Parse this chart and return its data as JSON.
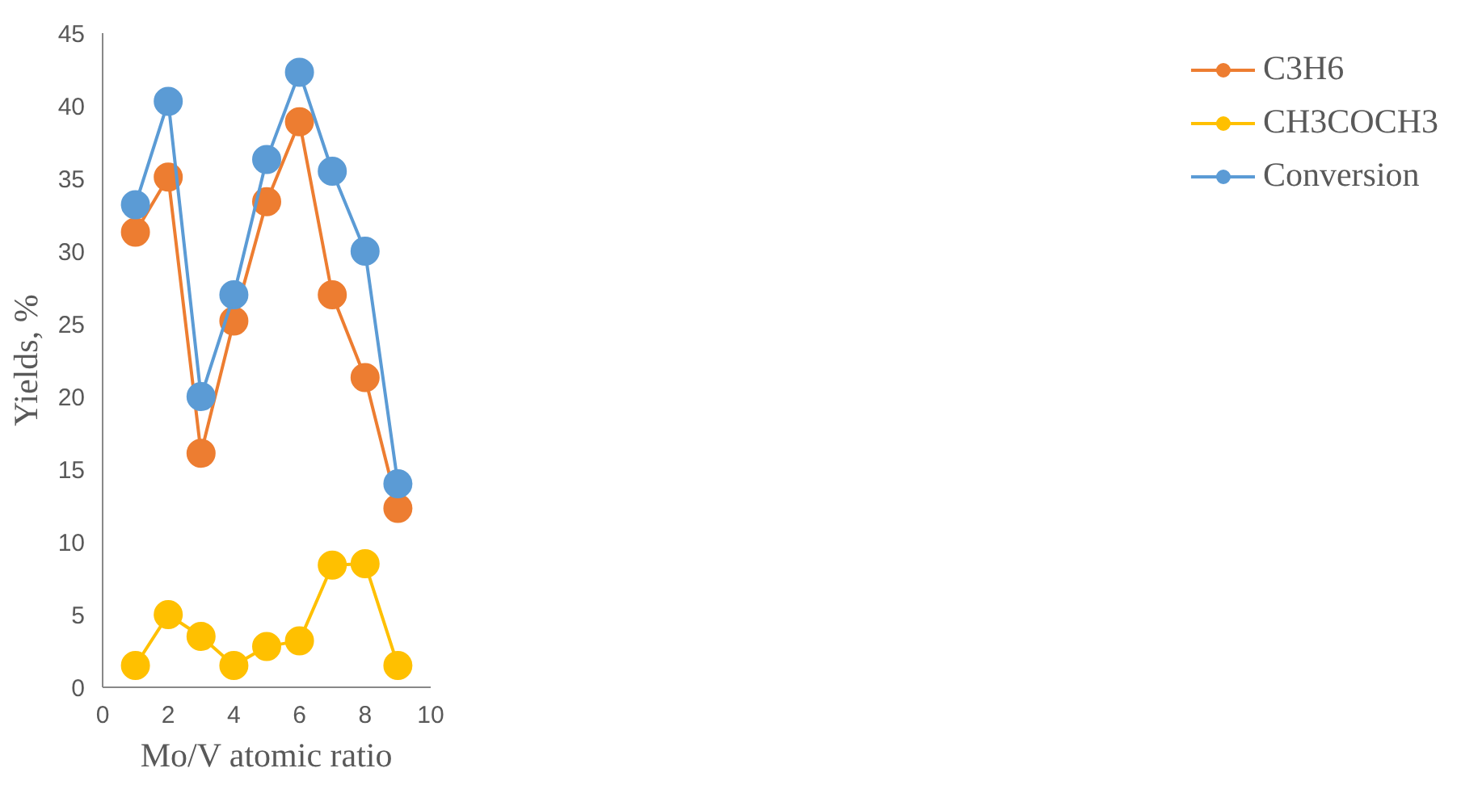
{
  "chart_data": {
    "type": "line",
    "xlabel": "Mo/V atomic ratio",
    "ylabel": "Yields, %",
    "x": [
      1,
      2,
      3,
      4,
      5,
      6,
      7,
      8,
      9
    ],
    "xlim": [
      0,
      10
    ],
    "xticks": [
      0,
      2,
      4,
      6,
      8,
      10
    ],
    "ylim": [
      0,
      45
    ],
    "yticks": [
      0,
      5,
      10,
      15,
      20,
      25,
      30,
      35,
      40,
      45
    ],
    "grid": false,
    "legend": "right",
    "marker": "circle",
    "line_style": "solid",
    "series": [
      {
        "name": "C3H6",
        "color": "#ed7d31",
        "values": [
          31.3,
          35.1,
          16.1,
          25.2,
          33.4,
          38.9,
          27,
          21.3,
          12.3
        ]
      },
      {
        "name": "CH3COCH3",
        "color": "#ffc000",
        "values": [
          1.5,
          5,
          3.5,
          1.5,
          2.8,
          3.2,
          8.4,
          8.5,
          1.5
        ]
      },
      {
        "name": "Conversion",
        "color": "#5b9bd5",
        "values": [
          33.2,
          40.3,
          20,
          27,
          36.3,
          42.3,
          35.5,
          30,
          14
        ]
      }
    ]
  }
}
